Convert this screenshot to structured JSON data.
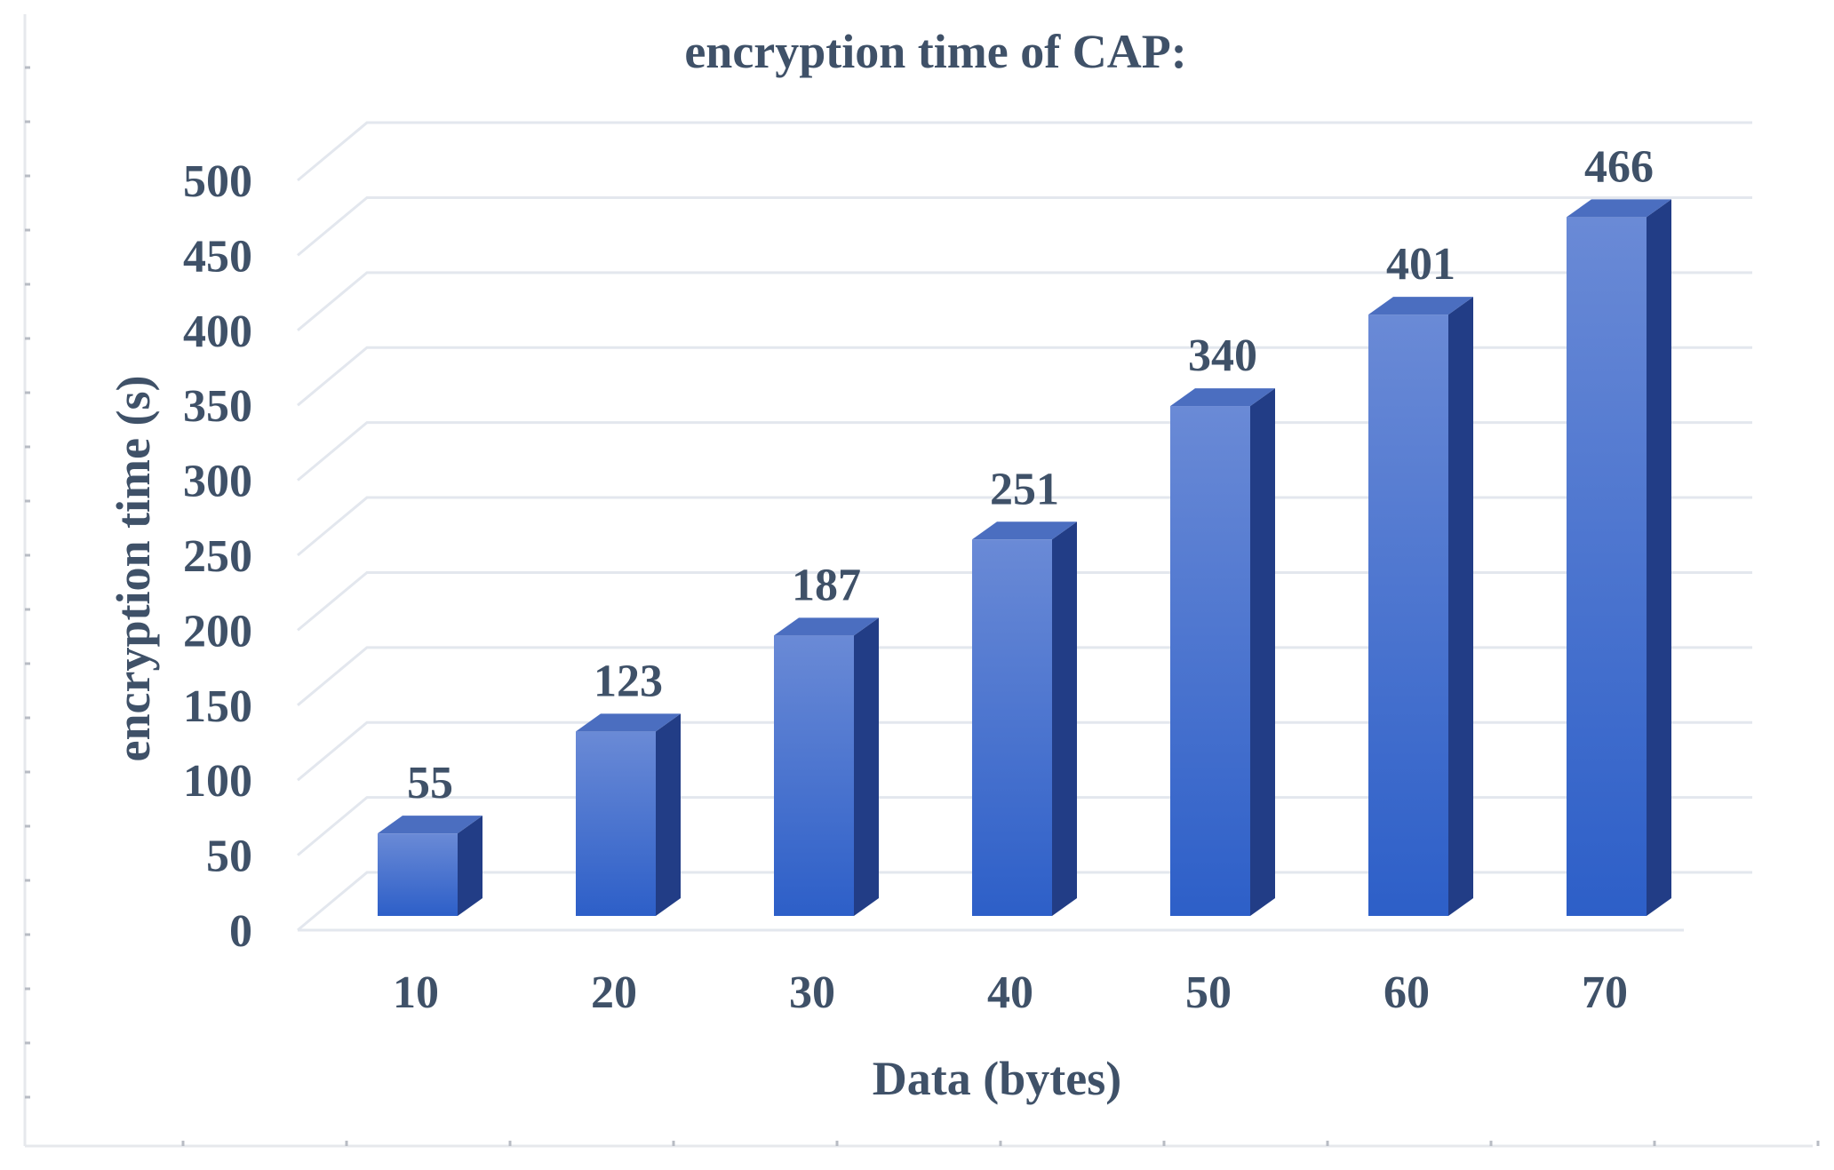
{
  "chart_data": {
    "type": "bar",
    "title": "encryption time of CAP:",
    "xlabel": "Data (bytes)",
    "ylabel": "encryption time (s)",
    "categories": [
      "10",
      "20",
      "30",
      "40",
      "50",
      "60",
      "70"
    ],
    "values": [
      55,
      123,
      187,
      251,
      340,
      401,
      466
    ],
    "data_labels": [
      "55",
      "123",
      "187",
      "251",
      "340",
      "401",
      "466"
    ],
    "yticks": [
      "0",
      "50",
      "100",
      "150",
      "200",
      "250",
      "300",
      "350",
      "400",
      "450",
      "500"
    ],
    "ylim": [
      0,
      500
    ],
    "grid": true,
    "legend": "none",
    "style": "3d-column",
    "colors": {
      "bar_front_top": "#6a8ad6",
      "bar_front_bottom": "#2d5fc8",
      "bar_side": "#223d86",
      "bar_top": "#4b6ec0",
      "text": "#3f5168"
    }
  }
}
